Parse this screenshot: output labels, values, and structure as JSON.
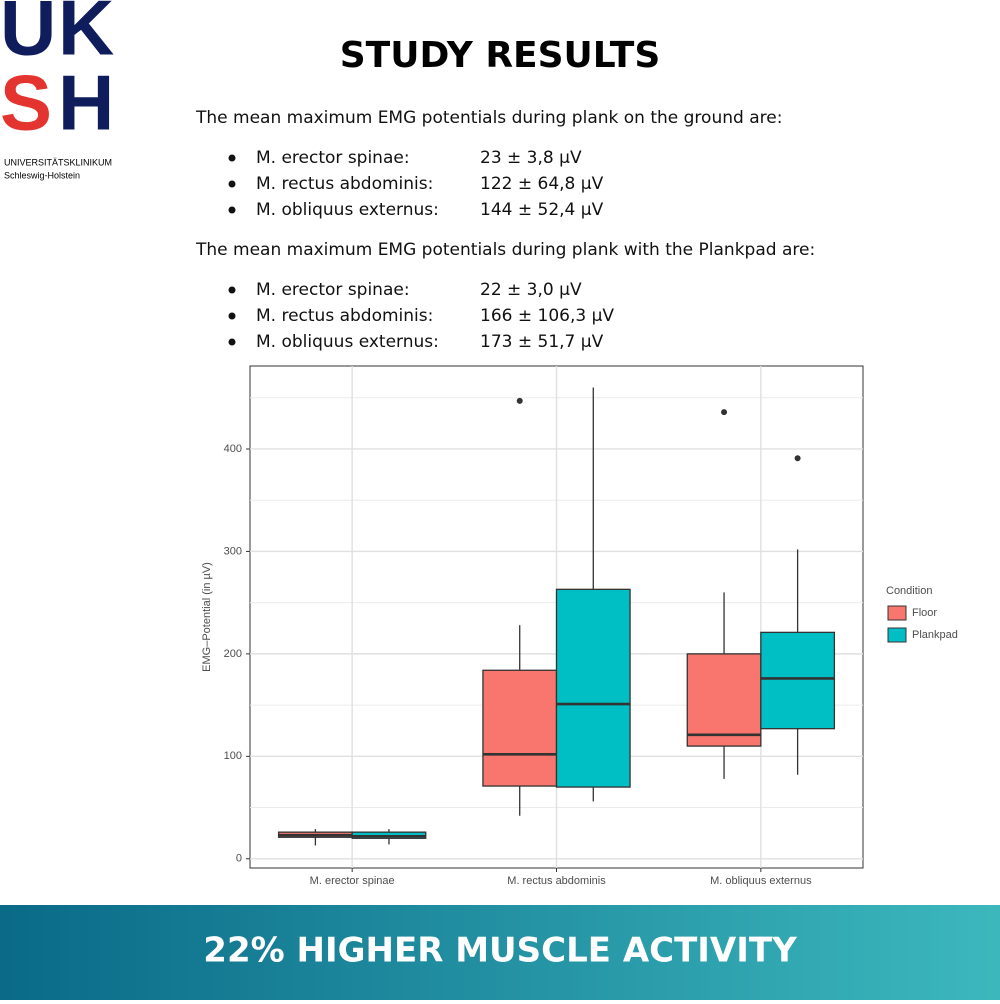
{
  "logo": {
    "letters": [
      "U",
      "K",
      "S",
      "H"
    ],
    "line1": "UNIVERSITÄTSKLINIKUM",
    "line2": "Schleswig-Holstein"
  },
  "header": {
    "title": "STUDY RESULTS"
  },
  "sections": [
    {
      "intro": "The mean maximum EMG potentials during plank on the ground are:",
      "items": [
        [
          "M. erector spinae:",
          "23 ± 3,8 µV"
        ],
        [
          "M. rectus abdominis:",
          "122 ± 64,8 µV"
        ],
        [
          "M. obliquus externus:",
          "144 ± 52,4 µV"
        ]
      ]
    },
    {
      "intro": "The mean maximum EMG potentials during plank with the Plankpad are:",
      "items": [
        [
          "M. erector spinae:",
          "22 ± 3,0 µV"
        ],
        [
          "M. rectus abdominis:",
          "166 ± 106,3 µV"
        ],
        [
          "M. obliquus externus:",
          "173 ± 51,7 µV"
        ]
      ]
    }
  ],
  "chart_data": {
    "type": "box",
    "y_label": "EMG–Potential (in µV)",
    "categories": [
      "M. erector spinae",
      "M. rectus abdominis",
      "M. obliquus externus"
    ],
    "legend_title": "Condition",
    "series": [
      {
        "name": "Floor",
        "color": "#f8766d",
        "min": [
          13,
          42,
          78
        ],
        "q1": [
          21,
          71,
          110
        ],
        "median": [
          23,
          102,
          121
        ],
        "q3": [
          26,
          184,
          200
        ],
        "max": [
          29,
          228,
          260
        ],
        "outliers": [
          [],
          [
            447
          ],
          [
            436
          ]
        ]
      },
      {
        "name": "Plankpad",
        "color": "#00bfc4",
        "min": [
          14,
          56,
          82
        ],
        "q1": [
          20,
          70,
          127
        ],
        "median": [
          22,
          151,
          176
        ],
        "q3": [
          26,
          263,
          221
        ],
        "max": [
          29,
          460,
          302
        ],
        "outliers": [
          [],
          [],
          [
            391
          ]
        ]
      }
    ],
    "ylim": [
      -9,
      481
    ],
    "yticks": [
      0,
      100,
      200,
      300,
      400
    ],
    "y_minor_grid": [
      50,
      150,
      250,
      350,
      450
    ],
    "grid": true,
    "legend": "right"
  },
  "banner": {
    "text": "22% HIGHER MUSCLE ACTIVITY"
  }
}
